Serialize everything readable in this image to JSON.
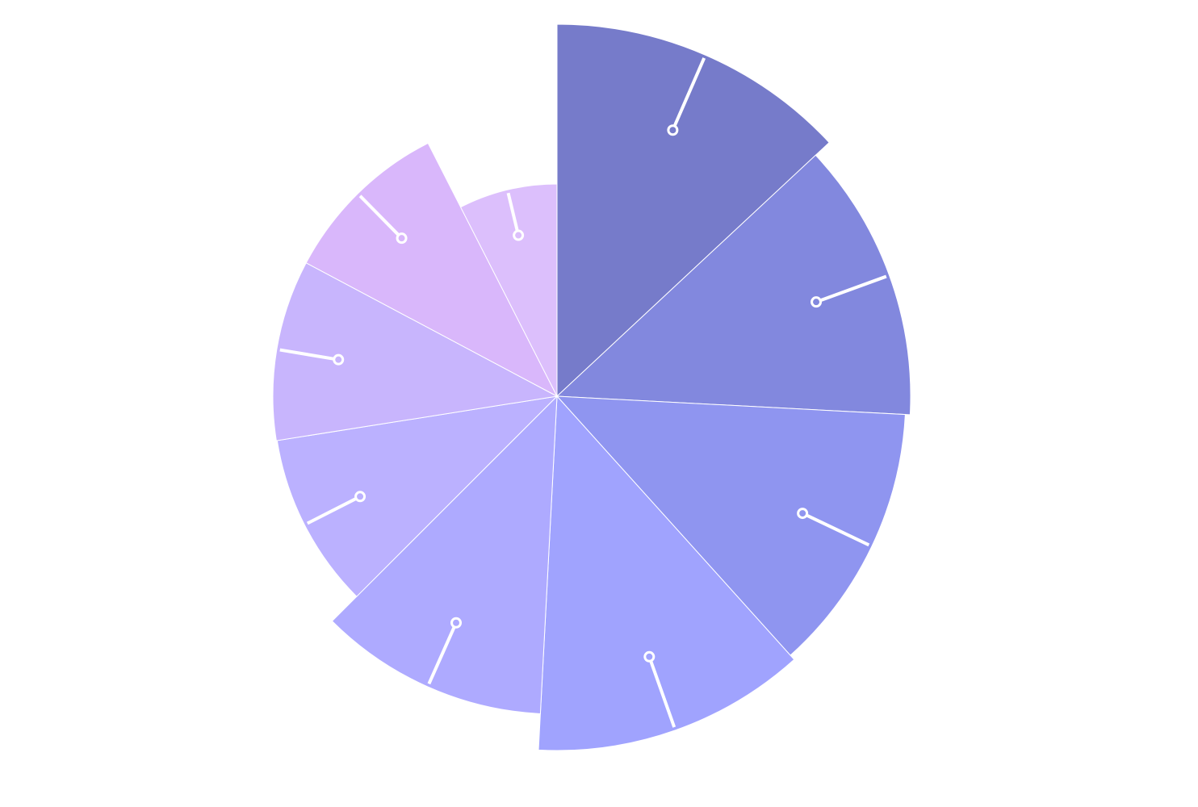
{
  "chart_data": {
    "type": "pie",
    "variant": "nightingale-rose",
    "start_angle_deg": 0,
    "direction": "clockwise",
    "slices": [
      {
        "start": 0,
        "end": 47,
        "radius": 461,
        "color": "#767bca"
      },
      {
        "start": 47,
        "end": 93,
        "radius": 438,
        "color": "#8288de"
      },
      {
        "start": 93,
        "end": 138,
        "radius": 432,
        "color": "#8f95f0"
      },
      {
        "start": 138,
        "end": 183,
        "radius": 439,
        "color": "#a0a3fe"
      },
      {
        "start": 183,
        "end": 225,
        "radius": 394,
        "color": "#aeaaff"
      },
      {
        "start": 225,
        "end": 261,
        "radius": 351,
        "color": "#bbb1ff"
      },
      {
        "start": 261,
        "end": 298,
        "radius": 352,
        "color": "#c8b5fd"
      },
      {
        "start": 298,
        "end": 333,
        "radius": 352,
        "color": "#d9b7fb"
      },
      {
        "start": 333,
        "end": 360,
        "radius": 263,
        "color": "#dcbffc"
      }
    ],
    "label_line_color": "#ffffff",
    "labels": []
  }
}
